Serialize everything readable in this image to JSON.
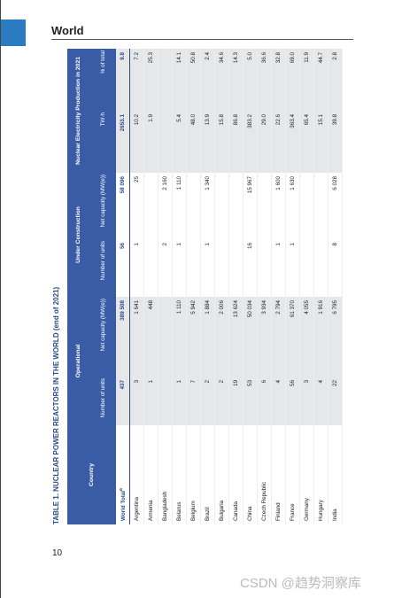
{
  "header": {
    "section": "World",
    "page_number": "10"
  },
  "table": {
    "title": "TABLE 1. NUCLEAR POWER REACTORS IN THE WORLD (end of 2021)",
    "country_header": "Country",
    "groups": [
      "Operational",
      "Under Construction",
      "Nuclear Electricity Production in 2021"
    ],
    "subheaders": [
      "Number of units",
      "Net capacity (MW(e))",
      "Number of units",
      "Net capacity (MW(e))",
      "TW·h",
      "% of total"
    ],
    "rows": [
      {
        "country": "World Total",
        "note": "a",
        "values": [
          "437",
          "389 508",
          "56",
          "58 096",
          "2653.1",
          "9.8"
        ]
      },
      {
        "country": "Argentina",
        "values": [
          "3",
          "1 641",
          "1",
          "25",
          "10.2",
          "7.2"
        ]
      },
      {
        "country": "Armenia",
        "values": [
          "1",
          "448",
          null,
          null,
          "1.9",
          "25.3"
        ]
      },
      {
        "country": "Bangladesh",
        "values": [
          null,
          null,
          "2",
          "2 160",
          null,
          null
        ]
      },
      {
        "country": "Belarus",
        "values": [
          "1",
          "1 110",
          "1",
          "1 110",
          "5.4",
          "14.1"
        ]
      },
      {
        "country": "Belgium",
        "values": [
          "7",
          "5 942",
          null,
          null,
          "48.0",
          "50.8"
        ]
      },
      {
        "country": "Brazil",
        "values": [
          "2",
          "1 884",
          "1",
          "1 340",
          "13.9",
          "2.4"
        ]
      },
      {
        "country": "Bulgaria",
        "values": [
          "2",
          "2 006",
          null,
          null,
          "15.8",
          "34.6"
        ]
      },
      {
        "country": "Canada",
        "values": [
          "19",
          "13 624",
          null,
          null,
          "86.8",
          "14.3"
        ]
      },
      {
        "country": "China",
        "values": [
          "53",
          "50 034",
          "16",
          "15 967",
          "383.2",
          "5.0"
        ]
      },
      {
        "country": "Czech Republic",
        "values": [
          "6",
          "3 934",
          null,
          null,
          "29.0",
          "36.6"
        ]
      },
      {
        "country": "Finland",
        "values": [
          "4",
          "2 794",
          "1",
          "1 600",
          "22.6",
          "32.8"
        ]
      },
      {
        "country": "France",
        "values": [
          "56",
          "61 370",
          "1",
          "1 630",
          "363.4",
          "69.0"
        ]
      },
      {
        "country": "Germany",
        "values": [
          "3",
          "4 055",
          null,
          null,
          "65.4",
          "11.9"
        ]
      },
      {
        "country": "Hungary",
        "values": [
          "4",
          "1 916",
          null,
          null,
          "15.1",
          "44.7"
        ]
      },
      {
        "country": "India",
        "values": [
          "22",
          "6 795",
          "8",
          "6 028",
          "39.8",
          "2.8"
        ]
      }
    ]
  },
  "watermark": "CSDN @趋势洞察库"
}
